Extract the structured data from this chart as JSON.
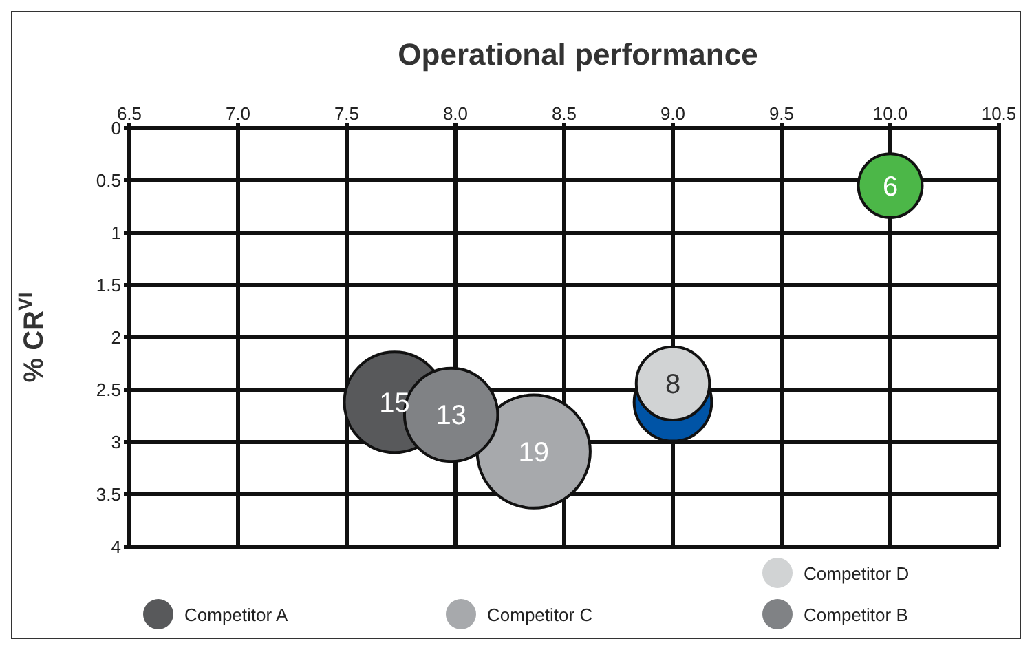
{
  "chart_data": {
    "type": "bubble",
    "xlabel": "Operational performance",
    "ylabel": "% CR$^{VI}$",
    "xlim": [
      6.5,
      10.5
    ],
    "xticks": [
      6.5,
      {
        "value": 7,
        "label": "7.0"
      },
      7.5,
      {
        "value": 8,
        "label": "8.0"
      },
      8.5,
      {
        "value": 9,
        "label": "9.0"
      },
      9.5,
      {
        "value": 10,
        "label": "10.0"
      },
      10.5
    ],
    "ylim": [
      4,
      0
    ],
    "yticks": [
      0,
      0.5,
      1,
      1.5,
      2,
      2.5,
      3,
      3.5,
      4
    ],
    "grid": true,
    "legend": "bottom",
    "series": [
      {
        "color": "#4cb748",
        "x": [
          10.0
        ],
        "values": [
          0.55
        ],
        "sizes": [
          0.32
        ]
      },
      {
        "color": "#0054a6",
        "x": [
          9.0
        ],
        "values": [
          2.62
        ],
        "sizes": [
          0.47
        ]
      },
      {
        "name": "Competitor D",
        "color": "#d1d3d4",
        "x": [
          9.0
        ],
        "values": [
          2.44
        ],
        "sizes": [
          0.42
        ]
      },
      {
        "name": "Competitor A",
        "color": "#58595b",
        "x": [
          7.72
        ],
        "values": [
          2.62
        ],
        "sizes": [
          0.79
        ]
      },
      {
        "name": "Competitor C",
        "color": "#a7a9ac",
        "x": [
          8.36
        ],
        "values": [
          3.09
        ],
        "sizes": [
          1
        ]
      },
      {
        "name": "Competitor B",
        "color": "#808285",
        "x": [
          7.98
        ],
        "values": [
          2.74
        ],
        "sizes": [
          0.68
        ]
      }
    ],
    "annotations": [
      {
        "text": "6",
        "x": 10.0,
        "y": 0.55
      },
      {
        "text": "8",
        "x": 9.0,
        "y": 2.44
      },
      {
        "text": "15",
        "x": 7.72,
        "y": 2.62
      },
      {
        "text": "19",
        "x": 8.36,
        "y": 3.09
      },
      {
        "text": "13",
        "x": 7.98,
        "y": 2.74
      }
    ]
  }
}
